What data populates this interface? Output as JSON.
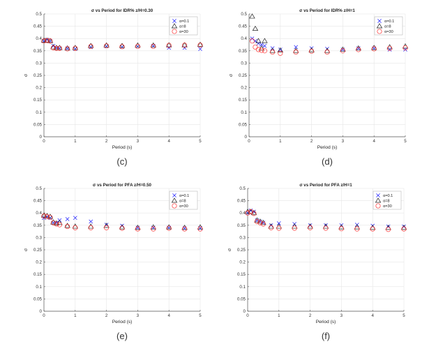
{
  "colors": {
    "alpha_0_1": "#1a1aff",
    "alpha_8": "#222222",
    "alpha_30": "#ff3333",
    "grid": "#e6e6e6",
    "axis": "#555555"
  },
  "chart_data": [
    {
      "type": "scatter",
      "caption": "(c)",
      "title": "σ vs Period for IDR% z/H=0.30",
      "xlabel": "Period (s)",
      "ylabel": "σ",
      "xlim": [
        0,
        5
      ],
      "ylim": [
        0,
        0.5
      ],
      "xticks": [
        0,
        1,
        2,
        3,
        4,
        5
      ],
      "yticks": [
        0,
        0.05,
        0.1,
        0.15,
        0.2,
        0.25,
        0.3,
        0.35,
        0.4,
        0.45,
        0.5
      ],
      "grid": true,
      "legend_position": "top-right",
      "series": [
        {
          "name": "α=0.1",
          "marker": "x",
          "x": [
            0,
            0.1,
            0.2,
            0.3,
            0.4,
            0.5,
            0.75,
            1,
            1.5,
            2,
            2.5,
            3,
            3.5,
            4,
            4.5,
            5
          ],
          "y": [
            0.39,
            0.395,
            0.39,
            0.37,
            0.362,
            0.36,
            0.36,
            0.358,
            0.365,
            0.368,
            0.366,
            0.368,
            0.37,
            0.362,
            0.362,
            0.357
          ]
        },
        {
          "name": "α=8",
          "marker": "triangle",
          "x": [
            0,
            0.1,
            0.2,
            0.3,
            0.4,
            0.5,
            0.75,
            1,
            1.5,
            2,
            2.5,
            3,
            3.5,
            4,
            4.5,
            5
          ],
          "y": [
            0.392,
            0.392,
            0.39,
            0.365,
            0.362,
            0.362,
            0.36,
            0.362,
            0.37,
            0.372,
            0.37,
            0.372,
            0.372,
            0.373,
            0.373,
            0.375
          ]
        },
        {
          "name": "α=30",
          "marker": "circle",
          "x": [
            0,
            0.1,
            0.2,
            0.3,
            0.4,
            0.5,
            0.75,
            1,
            1.5,
            2,
            2.5,
            3,
            3.5,
            4,
            4.5,
            5
          ],
          "y": [
            0.39,
            0.392,
            0.39,
            0.362,
            0.36,
            0.36,
            0.358,
            0.36,
            0.368,
            0.37,
            0.367,
            0.368,
            0.368,
            0.372,
            0.373,
            0.373
          ]
        }
      ]
    },
    {
      "type": "scatter",
      "caption": "(d)",
      "title": "σ vs Period for IDR% z/H=1",
      "xlabel": "Period (s)",
      "ylabel": "σ",
      "xlim": [
        0,
        5
      ],
      "ylim": [
        0,
        0.5
      ],
      "xticks": [
        0,
        1,
        2,
        3,
        4,
        5
      ],
      "yticks": [
        0,
        0.05,
        0.1,
        0.15,
        0.2,
        0.25,
        0.3,
        0.35,
        0.4,
        0.45,
        0.5
      ],
      "grid": true,
      "legend_position": "top-right",
      "series": [
        {
          "name": "α=0.1",
          "marker": "x",
          "x": [
            0.1,
            0.2,
            0.3,
            0.4,
            0.5,
            0.75,
            1,
            1.5,
            2,
            2.5,
            3,
            3.5,
            4,
            4.5,
            5
          ],
          "y": [
            0.4,
            0.39,
            0.38,
            0.375,
            0.37,
            0.36,
            0.355,
            0.365,
            0.36,
            0.358,
            0.355,
            0.36,
            0.36,
            0.355,
            0.355
          ]
        },
        {
          "name": "α=8",
          "marker": "triangle",
          "x": [
            0.1,
            0.2,
            0.3,
            0.4,
            0.5,
            0.75,
            1,
            1.5,
            2,
            2.5,
            3,
            3.5,
            4,
            4.5,
            5
          ],
          "y": [
            0.49,
            0.44,
            0.39,
            0.36,
            0.39,
            0.35,
            0.352,
            0.35,
            0.352,
            0.35,
            0.355,
            0.36,
            0.362,
            0.365,
            0.368
          ]
        },
        {
          "name": "α=30",
          "marker": "circle",
          "x": [
            0.1,
            0.2,
            0.3,
            0.4,
            0.5,
            0.75,
            1,
            1.5,
            2,
            2.5,
            3,
            3.5,
            4,
            4.5,
            5
          ],
          "y": [
            0.39,
            0.365,
            0.355,
            0.352,
            0.35,
            0.345,
            0.34,
            0.345,
            0.348,
            0.345,
            0.35,
            0.355,
            0.358,
            0.36,
            0.362
          ]
        }
      ]
    },
    {
      "type": "scatter",
      "caption": "(e)",
      "title": "σ vs Period for PFA z/H=0.50",
      "xlabel": "Period (s)",
      "ylabel": "σ",
      "xlim": [
        0,
        5
      ],
      "ylim": [
        0,
        0.5
      ],
      "xticks": [
        0,
        1,
        2,
        3,
        4,
        5
      ],
      "yticks": [
        0,
        0.05,
        0.1,
        0.15,
        0.2,
        0.25,
        0.3,
        0.35,
        0.4,
        0.45,
        0.5
      ],
      "grid": true,
      "legend_position": "top-right",
      "series": [
        {
          "name": "α=0.1",
          "marker": "x",
          "x": [
            0,
            0.1,
            0.2,
            0.3,
            0.4,
            0.5,
            0.75,
            1,
            1.5,
            2,
            2.5,
            3,
            3.5,
            4,
            4.5,
            5
          ],
          "y": [
            0.38,
            0.385,
            0.38,
            0.36,
            0.36,
            0.37,
            0.375,
            0.38,
            0.365,
            0.352,
            0.348,
            0.34,
            0.34,
            0.34,
            0.338,
            0.338
          ]
        },
        {
          "name": "α=8",
          "marker": "triangle",
          "x": [
            0,
            0.1,
            0.2,
            0.3,
            0.4,
            0.5,
            0.75,
            1,
            1.5,
            2,
            2.5,
            3,
            3.5,
            4,
            4.5,
            5
          ],
          "y": [
            0.39,
            0.388,
            0.385,
            0.362,
            0.358,
            0.36,
            0.348,
            0.345,
            0.345,
            0.348,
            0.342,
            0.34,
            0.342,
            0.342,
            0.34,
            0.342
          ]
        },
        {
          "name": "α=30",
          "marker": "circle",
          "x": [
            0,
            0.1,
            0.2,
            0.3,
            0.4,
            0.5,
            0.75,
            1,
            1.5,
            2,
            2.5,
            3,
            3.5,
            4,
            4.5,
            5
          ],
          "y": [
            0.388,
            0.385,
            0.382,
            0.36,
            0.355,
            0.352,
            0.345,
            0.34,
            0.34,
            0.34,
            0.338,
            0.335,
            0.335,
            0.338,
            0.335,
            0.335
          ]
        }
      ]
    },
    {
      "type": "scatter",
      "caption": "(f)",
      "title": "σ vs Period for PFA z/H=1",
      "xlabel": "Period (s)",
      "ylabel": "σ",
      "xlim": [
        0,
        5
      ],
      "ylim": [
        0,
        0.5
      ],
      "xticks": [
        0,
        1,
        2,
        3,
        4,
        5
      ],
      "yticks": [
        0,
        0.05,
        0.1,
        0.15,
        0.2,
        0.25,
        0.3,
        0.35,
        0.4,
        0.45,
        0.5
      ],
      "grid": true,
      "legend_position": "top-right",
      "series": [
        {
          "name": "α=0.1",
          "marker": "x",
          "x": [
            0,
            0.1,
            0.2,
            0.3,
            0.4,
            0.5,
            0.75,
            1,
            1.5,
            2,
            2.5,
            3,
            3.5,
            4,
            4.5,
            5
          ],
          "y": [
            0.4,
            0.41,
            0.405,
            0.37,
            0.365,
            0.36,
            0.35,
            0.358,
            0.355,
            0.35,
            0.35,
            0.35,
            0.352,
            0.348,
            0.345,
            0.345
          ]
        },
        {
          "name": "α=8",
          "marker": "triangle",
          "x": [
            0,
            0.1,
            0.2,
            0.3,
            0.4,
            0.5,
            0.75,
            1,
            1.5,
            2,
            2.5,
            3,
            3.5,
            4,
            4.5,
            5
          ],
          "y": [
            0.405,
            0.405,
            0.4,
            0.37,
            0.365,
            0.36,
            0.345,
            0.345,
            0.345,
            0.345,
            0.345,
            0.342,
            0.342,
            0.34,
            0.34,
            0.34
          ]
        },
        {
          "name": "α=30",
          "marker": "circle",
          "x": [
            0,
            0.1,
            0.2,
            0.3,
            0.4,
            0.5,
            0.75,
            1,
            1.5,
            2,
            2.5,
            3,
            3.5,
            4,
            4.5,
            5
          ],
          "y": [
            0.4,
            0.405,
            0.398,
            0.365,
            0.36,
            0.355,
            0.34,
            0.338,
            0.338,
            0.34,
            0.338,
            0.336,
            0.335,
            0.335,
            0.333,
            0.335
          ]
        }
      ]
    }
  ]
}
